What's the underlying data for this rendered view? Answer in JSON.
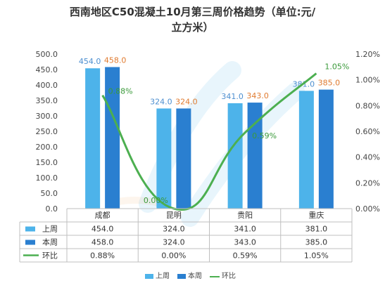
{
  "title_lines": [
    "西南地区C50混凝土10月第三周价格趋势（单位:元/",
    "立方米）"
  ],
  "chart_data": {
    "type": "bar",
    "categories": [
      "成都",
      "昆明",
      "贵阳",
      "重庆"
    ],
    "series": [
      {
        "name": "上周",
        "type": "bar",
        "values": [
          454.0,
          324.0,
          341.0,
          381.0
        ],
        "labels": [
          "454.0",
          "324.0",
          "341.0",
          "381.0"
        ],
        "color": "#4DB3EA",
        "label_color": "#4D8FD0"
      },
      {
        "name": "本周",
        "type": "bar",
        "values": [
          458.0,
          324.0,
          343.0,
          385.0
        ],
        "labels": [
          "458.0",
          "324.0",
          "343.0",
          "385.0"
        ],
        "color": "#2A7FD0",
        "label_color": "#E07B30"
      },
      {
        "name": "环比",
        "type": "line",
        "axis": "right",
        "values": [
          0.88,
          0.0,
          0.59,
          1.05
        ],
        "labels": [
          "0.88%",
          "0.00%",
          "0.59%",
          "1.05%"
        ],
        "color": "#4CAF50",
        "label_color": "#3A9A3A"
      }
    ],
    "left_axis": {
      "min": 0,
      "max": 500,
      "step": 50,
      "tick_labels": [
        "0.0",
        "50.0",
        "100.0",
        "150.0",
        "200.0",
        "250.0",
        "300.0",
        "350.0",
        "400.0",
        "450.0",
        "500.0"
      ]
    },
    "right_axis": {
      "min": 0,
      "max": 1.2,
      "step": 0.2,
      "tick_labels": [
        "0.00%",
        "0.20%",
        "0.40%",
        "0.60%",
        "0.80%",
        "1.00%",
        "1.20%"
      ]
    },
    "grid": false,
    "data_table": true,
    "legend_position": "bottom"
  }
}
